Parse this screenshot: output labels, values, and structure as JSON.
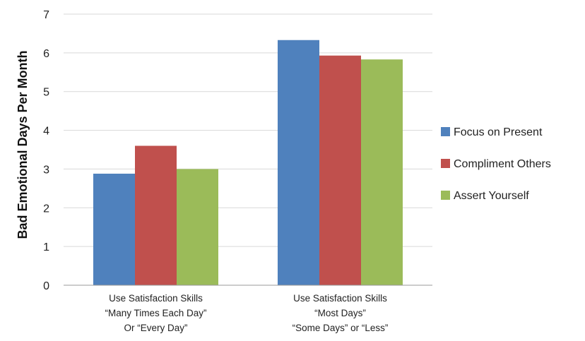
{
  "chart_data": {
    "type": "bar",
    "categories": [
      [
        "Use Satisfaction Skills",
        "“Many Times Each Day”",
        "Or “Every Day”"
      ],
      [
        "Use Satisfaction Skills",
        "“Most Days”",
        "“Some Days” or “Less”"
      ]
    ],
    "series": [
      {
        "name": "Focus on Present",
        "values": [
          2.88,
          6.33
        ],
        "color": "#4f81bd"
      },
      {
        "name": "Compliment Others",
        "values": [
          3.6,
          5.93
        ],
        "color": "#c0504d"
      },
      {
        "name": "Assert Yourself",
        "values": [
          3.0,
          5.83
        ],
        "color": "#9bbb59"
      }
    ],
    "ylabel": "Bad Emotional Days Per Month",
    "xlabel": "",
    "ylim": [
      0,
      7
    ],
    "yticks": [
      0,
      1,
      2,
      3,
      4,
      5,
      6,
      7
    ],
    "grid": true,
    "legend_position": "right"
  }
}
